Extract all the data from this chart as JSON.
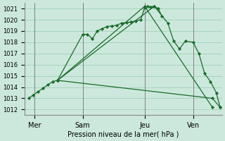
{
  "bg_color": "#cce8dc",
  "grid_color": "#99ccb3",
  "line_color": "#1a6b2a",
  "marker_color": "#1a6b2a",
  "xlabel": "Pression niveau de la mer( hPa )",
  "ylim": [
    1011.5,
    1021.5
  ],
  "yticks": [
    1012,
    1013,
    1014,
    1015,
    1016,
    1017,
    1018,
    1019,
    1020,
    1021
  ],
  "xlim": [
    -0.2,
    10.0
  ],
  "xtick_positions": [
    0.3,
    2.8,
    6.0,
    8.5
  ],
  "xtick_labels": [
    "Mer",
    "Sam",
    "Jeu",
    "Ven"
  ],
  "vlines": [
    0.3,
    2.8,
    6.0,
    8.5
  ],
  "series": [
    {
      "x": [
        0.0,
        0.25,
        0.5,
        0.75,
        1.0,
        1.25,
        1.5,
        2.8,
        3.05,
        3.3,
        3.55,
        3.8,
        4.05,
        4.3,
        4.55,
        4.8,
        5.05,
        5.3,
        5.55,
        5.8,
        6.0,
        6.15,
        6.3,
        6.5,
        6.7,
        6.9
      ],
      "y": [
        1013.0,
        1013.3,
        1013.6,
        1013.9,
        1014.2,
        1014.5,
        1014.6,
        1018.7,
        1018.7,
        1018.3,
        1019.0,
        1019.2,
        1019.4,
        1019.45,
        1019.5,
        1019.7,
        1019.75,
        1019.8,
        1019.9,
        1020.0,
        1021.1,
        1021.2,
        1021.15,
        1021.2,
        1021.0,
        1020.3
      ]
    },
    {
      "x": [
        1.5,
        6.0,
        9.5
      ],
      "y": [
        1014.6,
        1021.2,
        1012.2
      ]
    },
    {
      "x": [
        1.5,
        6.5,
        7.2,
        7.5,
        7.8,
        8.1,
        8.5,
        8.8,
        9.1,
        9.4,
        9.7,
        9.9
      ],
      "y": [
        1014.6,
        1021.2,
        1019.7,
        1018.1,
        1017.4,
        1018.1,
        1018.0,
        1017.0,
        1015.2,
        1014.5,
        1013.5,
        1012.2
      ]
    },
    {
      "x": [
        1.5,
        9.5,
        9.9
      ],
      "y": [
        1014.6,
        1013.0,
        1012.2
      ]
    }
  ]
}
